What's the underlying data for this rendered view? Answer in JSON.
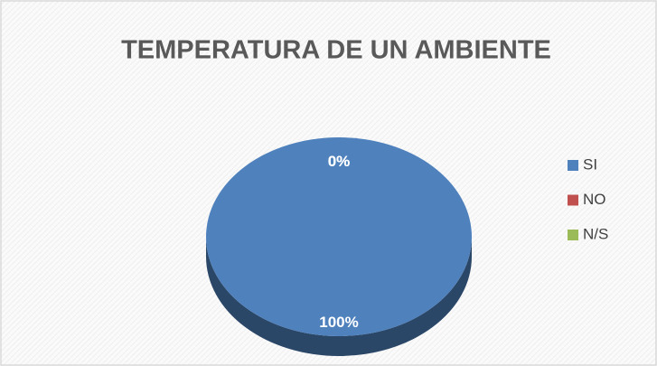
{
  "chart_data": {
    "type": "pie",
    "title": "TEMPERATURA DE UN AMBIENTE",
    "categories": [
      "SI",
      "NO",
      "N/S"
    ],
    "values": [
      100,
      0,
      0
    ],
    "value_labels": [
      "100%",
      "0%",
      "0%"
    ],
    "colors": [
      "#4f81bd",
      "#c0504d",
      "#9bbb59"
    ],
    "legend": "right"
  }
}
